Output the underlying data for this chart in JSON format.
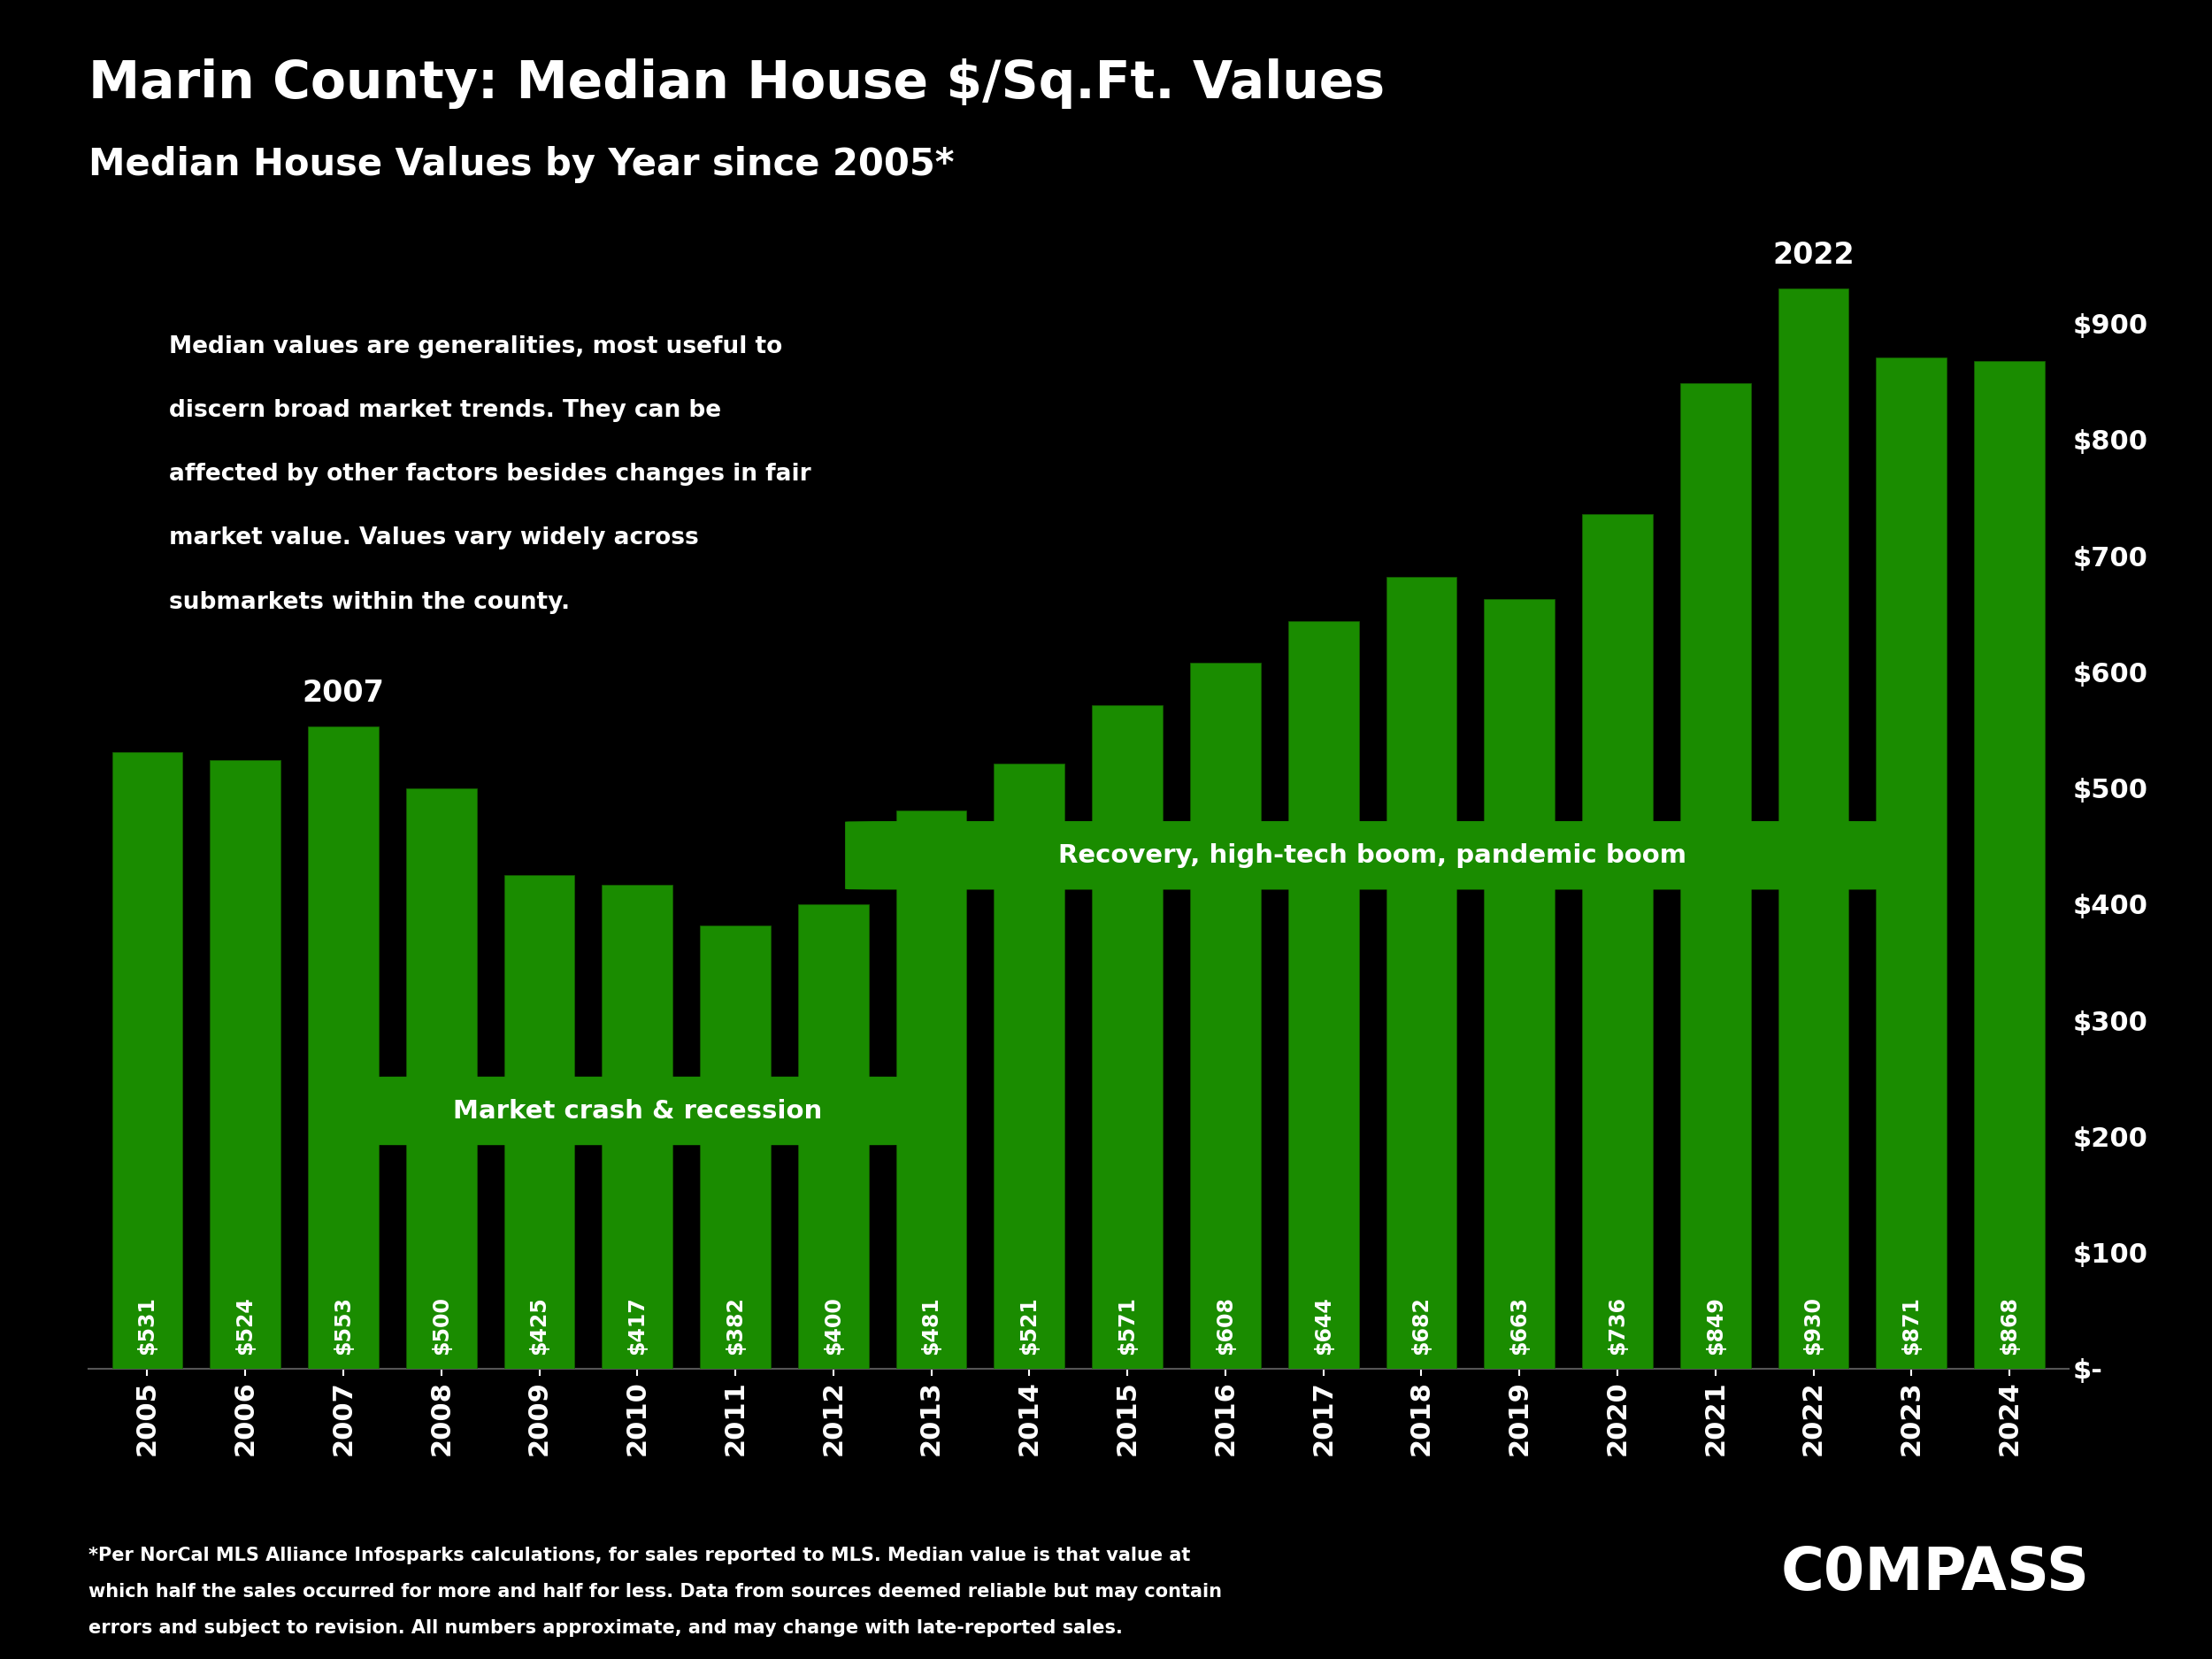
{
  "title": "Marin County: Median House $/Sq.Ft. Values",
  "subtitle": "Median House Values by Year since 2005*",
  "years": [
    2005,
    2006,
    2007,
    2008,
    2009,
    2010,
    2011,
    2012,
    2013,
    2014,
    2015,
    2016,
    2017,
    2018,
    2019,
    2020,
    2021,
    2022,
    2023,
    2024
  ],
  "values": [
    531,
    524,
    553,
    500,
    425,
    417,
    382,
    400,
    481,
    521,
    571,
    608,
    644,
    682,
    663,
    736,
    849,
    930,
    871,
    868
  ],
  "bar_color": "#1a8c00",
  "bar_edge_color": "#155f00",
  "background_color": "#000000",
  "text_color": "#ffffff",
  "grid_color": "#555555",
  "annotation_box_color": "#1a8c00",
  "annotation_text1": "Market crash & recession",
  "annotation_text2": "Recovery, high-tech boom, pandemic boom",
  "peak_label_year1": "2007",
  "peak_label_year2": "2022",
  "ymax": 1000,
  "ylabel_right": [
    "$-",
    "$100",
    "$200",
    "$300",
    "$400",
    "$500",
    "$600",
    "$700",
    "$800",
    "$900"
  ],
  "ylabel_right_vals": [
    0,
    100,
    200,
    300,
    400,
    500,
    600,
    700,
    800,
    900
  ],
  "description_line1": "Median values are generalities, most useful to",
  "description_line2": "discern broad market trends. They can be",
  "description_line3": "affected by other factors besides changes in fair",
  "description_line4": "market value. Values vary widely across",
  "description_line5": "submarkets within the county.",
  "footnote_line1": "*Per NorCal MLS Alliance Infosparks calculations, for sales reported to MLS. Median value is that value at",
  "footnote_line2": "which half the sales occurred for more and half for less. Data from sources deemed reliable but may contain",
  "footnote_line3": "errors and subject to revision. All numbers approximate, and may change with late-reported sales.",
  "compass_text": "C0MPASS"
}
